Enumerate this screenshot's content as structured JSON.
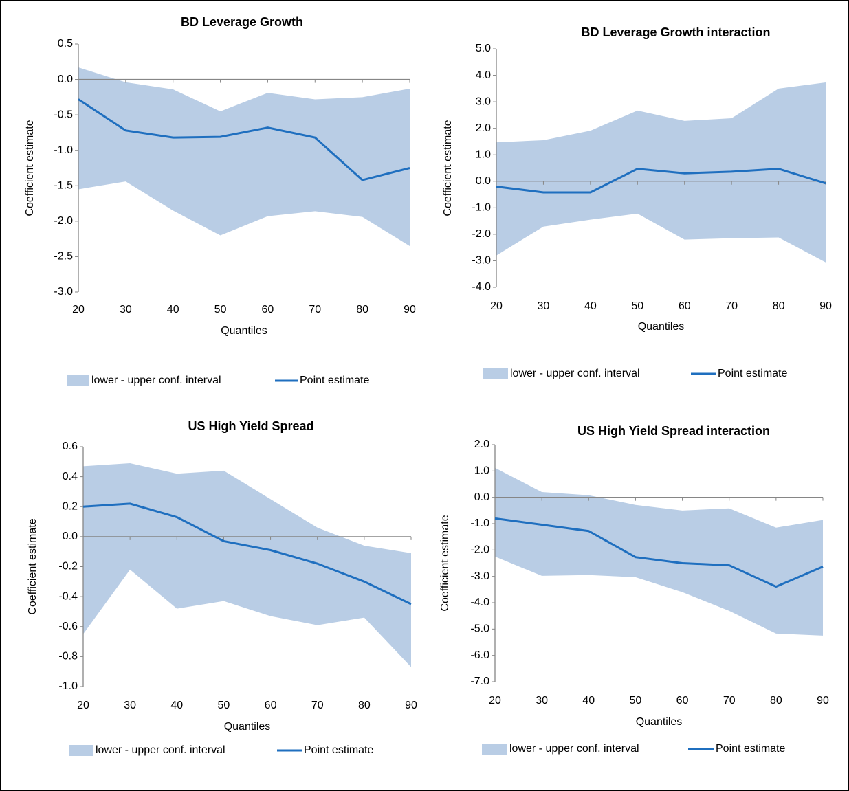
{
  "chart_data": [
    {
      "type": "line",
      "title": "BD Leverage Growth",
      "x_label": "Quantiles",
      "y_label": "Coefficient estimate",
      "x": [
        20,
        30,
        40,
        50,
        60,
        70,
        80,
        90
      ],
      "xlim": [
        20,
        90
      ],
      "xticks": [
        20,
        30,
        40,
        50,
        60,
        70,
        80,
        90
      ],
      "ylim": [
        -3,
        0.5
      ],
      "yticks": [
        {
          "value": -3,
          "label": "-3.0"
        },
        -2.5,
        {
          "value": -2,
          "label": "-2.0"
        },
        -1.5,
        {
          "value": -1,
          "label": "-1.0"
        },
        -0.5,
        {
          "value": 0,
          "label": "0.0"
        },
        0.5
      ],
      "series": [
        {
          "name": "lower - upper conf. interval",
          "color": "#b9cde5",
          "upper": [
            0.17,
            -0.04,
            -0.14,
            -0.45,
            -0.19,
            -0.28,
            -0.25,
            -0.13
          ],
          "lower": [
            -1.55,
            -1.44,
            -1.85,
            -2.2,
            -1.93,
            -1.86,
            -1.94,
            -2.35
          ]
        },
        {
          "name": "Point estimate",
          "color": "#1f6fbf",
          "values": [
            -0.28,
            -0.72,
            -0.82,
            -0.81,
            -0.68,
            -0.82,
            -1.42,
            -1.25
          ]
        }
      ]
    },
    {
      "type": "line",
      "title": "BD Leverage Growth interaction",
      "x_label": "Quantiles",
      "y_label": "Coefficient estimate",
      "x": [
        20,
        30,
        40,
        50,
        60,
        70,
        80,
        90
      ],
      "xlim": [
        20,
        90
      ],
      "xticks": [
        20,
        30,
        40,
        50,
        60,
        70,
        80,
        90
      ],
      "ylim": [
        -4,
        5
      ],
      "yticks": [
        {
          "value": -4,
          "label": "-4.0"
        },
        {
          "value": -3,
          "label": "-3.0"
        },
        {
          "value": -2,
          "label": "-2.0"
        },
        {
          "value": -1,
          "label": "-1.0"
        },
        {
          "value": 0,
          "label": "0.0"
        },
        {
          "value": 1,
          "label": "1.0"
        },
        {
          "value": 2,
          "label": "2.0"
        },
        {
          "value": 3,
          "label": "3.0"
        },
        {
          "value": 4,
          "label": "4.0"
        },
        {
          "value": 5,
          "label": "5.0"
        }
      ],
      "series": [
        {
          "name": "lower - upper conf. interval",
          "color": "#b9cde5",
          "upper": [
            1.47,
            1.55,
            1.91,
            2.67,
            2.28,
            2.38,
            3.5,
            3.73
          ],
          "lower": [
            -2.8,
            -1.71,
            -1.45,
            -1.22,
            -2.2,
            -2.15,
            -2.12,
            -3.06
          ]
        },
        {
          "name": "Point estimate",
          "color": "#1f6fbf",
          "values": [
            -0.2,
            -0.42,
            -0.42,
            0.47,
            0.3,
            0.36,
            0.47,
            -0.08
          ]
        }
      ]
    },
    {
      "type": "line",
      "title": "US High Yield Spread",
      "x_label": "Quantiles",
      "y_label": "Coefficient estimate",
      "x": [
        20,
        30,
        40,
        50,
        60,
        70,
        80,
        90
      ],
      "xlim": [
        20,
        90
      ],
      "xticks": [
        20,
        30,
        40,
        50,
        60,
        70,
        80,
        90
      ],
      "ylim": [
        -1,
        0.6
      ],
      "yticks": [
        {
          "value": -1,
          "label": "-1.0"
        },
        -0.8,
        -0.6,
        -0.4,
        -0.2,
        {
          "value": 0,
          "label": "0.0"
        },
        0.2,
        0.4,
        0.6
      ],
      "series": [
        {
          "name": "lower - upper conf. interval",
          "color": "#b9cde5",
          "upper": [
            0.47,
            0.49,
            0.42,
            0.44,
            0.25,
            0.06,
            -0.06,
            -0.11
          ],
          "lower": [
            -0.65,
            -0.22,
            -0.48,
            -0.43,
            -0.53,
            -0.59,
            -0.54,
            -0.87
          ]
        },
        {
          "name": "Point estimate",
          "color": "#1f6fbf",
          "values": [
            0.2,
            0.22,
            0.13,
            -0.03,
            -0.09,
            -0.18,
            -0.3,
            -0.45
          ]
        }
      ]
    },
    {
      "type": "line",
      "title": "US High Yield  Spread interaction",
      "x_label": "Quantiles",
      "y_label": "Coefficient estimate",
      "x": [
        20,
        30,
        40,
        50,
        60,
        70,
        80,
        90
      ],
      "xlim": [
        20,
        90
      ],
      "xticks": [
        20,
        30,
        40,
        50,
        60,
        70,
        80,
        90
      ],
      "ylim": [
        -7,
        2
      ],
      "yticks": [
        {
          "value": -7,
          "label": "-7.0"
        },
        {
          "value": -6,
          "label": "-6.0"
        },
        {
          "value": -5,
          "label": "-5.0"
        },
        {
          "value": -4,
          "label": "-4.0"
        },
        {
          "value": -3,
          "label": "-3.0"
        },
        {
          "value": -2,
          "label": "-2.0"
        },
        {
          "value": -1,
          "label": "-1.0"
        },
        {
          "value": 0,
          "label": "0.0"
        },
        {
          "value": 1,
          "label": "1.0"
        },
        {
          "value": 2,
          "label": "2.0"
        }
      ],
      "series": [
        {
          "name": "lower - upper conf. interval",
          "color": "#b9cde5",
          "upper": [
            1.12,
            0.2,
            0.08,
            -0.29,
            -0.5,
            -0.42,
            -1.15,
            -0.86
          ],
          "lower": [
            -2.25,
            -2.98,
            -2.95,
            -3.03,
            -3.6,
            -4.31,
            -5.17,
            -5.25
          ]
        },
        {
          "name": "Point estimate",
          "color": "#1f6fbf",
          "values": [
            -0.8,
            -1.04,
            -1.28,
            -2.27,
            -2.5,
            -2.58,
            -3.39,
            -2.63
          ]
        }
      ]
    }
  ]
}
